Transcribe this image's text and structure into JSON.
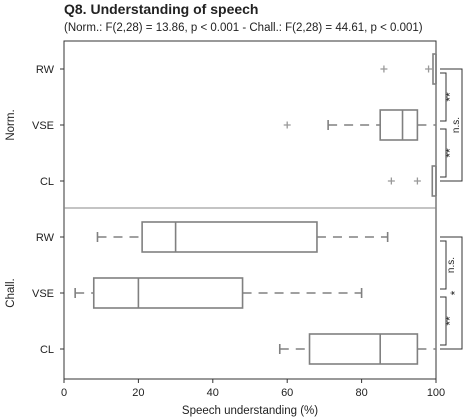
{
  "chart_data": {
    "type": "boxplot",
    "title": "Q8. Understanding of speech",
    "subtitle": "(Norm.: F(2,28) = 13.86, p < 0.001 - Chall.: F(2,28) = 44.61, p < 0.001)",
    "xlabel": "Speech understanding (%)",
    "xlim": [
      0,
      100
    ],
    "xticks": [
      "0",
      "20",
      "40",
      "60",
      "80",
      "100"
    ],
    "grid": false,
    "colors": {
      "box": "#808080",
      "text": "#222222"
    },
    "groups": [
      {
        "name": "Norm.",
        "categories": [
          {
            "label": "RW",
            "whisker_low": 100,
            "q1": 100,
            "median": 100,
            "q3": 100,
            "whisker_high": 100,
            "outliers": [
              86,
              98
            ]
          },
          {
            "label": "VSE",
            "whisker_low": 71,
            "q1": 85,
            "median": 91,
            "q3": 95,
            "whisker_high": 100,
            "outliers": [
              60
            ]
          },
          {
            "label": "CL",
            "whisker_low": 99,
            "q1": 99,
            "median": 100,
            "q3": 100,
            "whisker_high": 100,
            "outliers": [
              88,
              95
            ]
          }
        ],
        "significance": [
          {
            "from": "RW",
            "to": "VSE",
            "label": "**"
          },
          {
            "from": "VSE",
            "to": "CL",
            "label": "**"
          },
          {
            "from": "RW",
            "to": "CL",
            "label": "n.s."
          }
        ]
      },
      {
        "name": "Chall.",
        "categories": [
          {
            "label": "RW",
            "whisker_low": 9,
            "q1": 21,
            "median": 30,
            "q3": 68,
            "whisker_high": 87,
            "outliers": []
          },
          {
            "label": "VSE",
            "whisker_low": 3,
            "q1": 8,
            "median": 20,
            "q3": 48,
            "whisker_high": 80,
            "outliers": []
          },
          {
            "label": "CL",
            "whisker_low": 58,
            "q1": 66,
            "median": 85,
            "q3": 95,
            "whisker_high": 100,
            "outliers": []
          }
        ],
        "significance": [
          {
            "from": "RW",
            "to": "VSE",
            "label": "n.s."
          },
          {
            "from": "VSE",
            "to": "CL",
            "label": "**"
          },
          {
            "from": "RW",
            "to": "CL",
            "label": "*"
          }
        ]
      }
    ]
  }
}
